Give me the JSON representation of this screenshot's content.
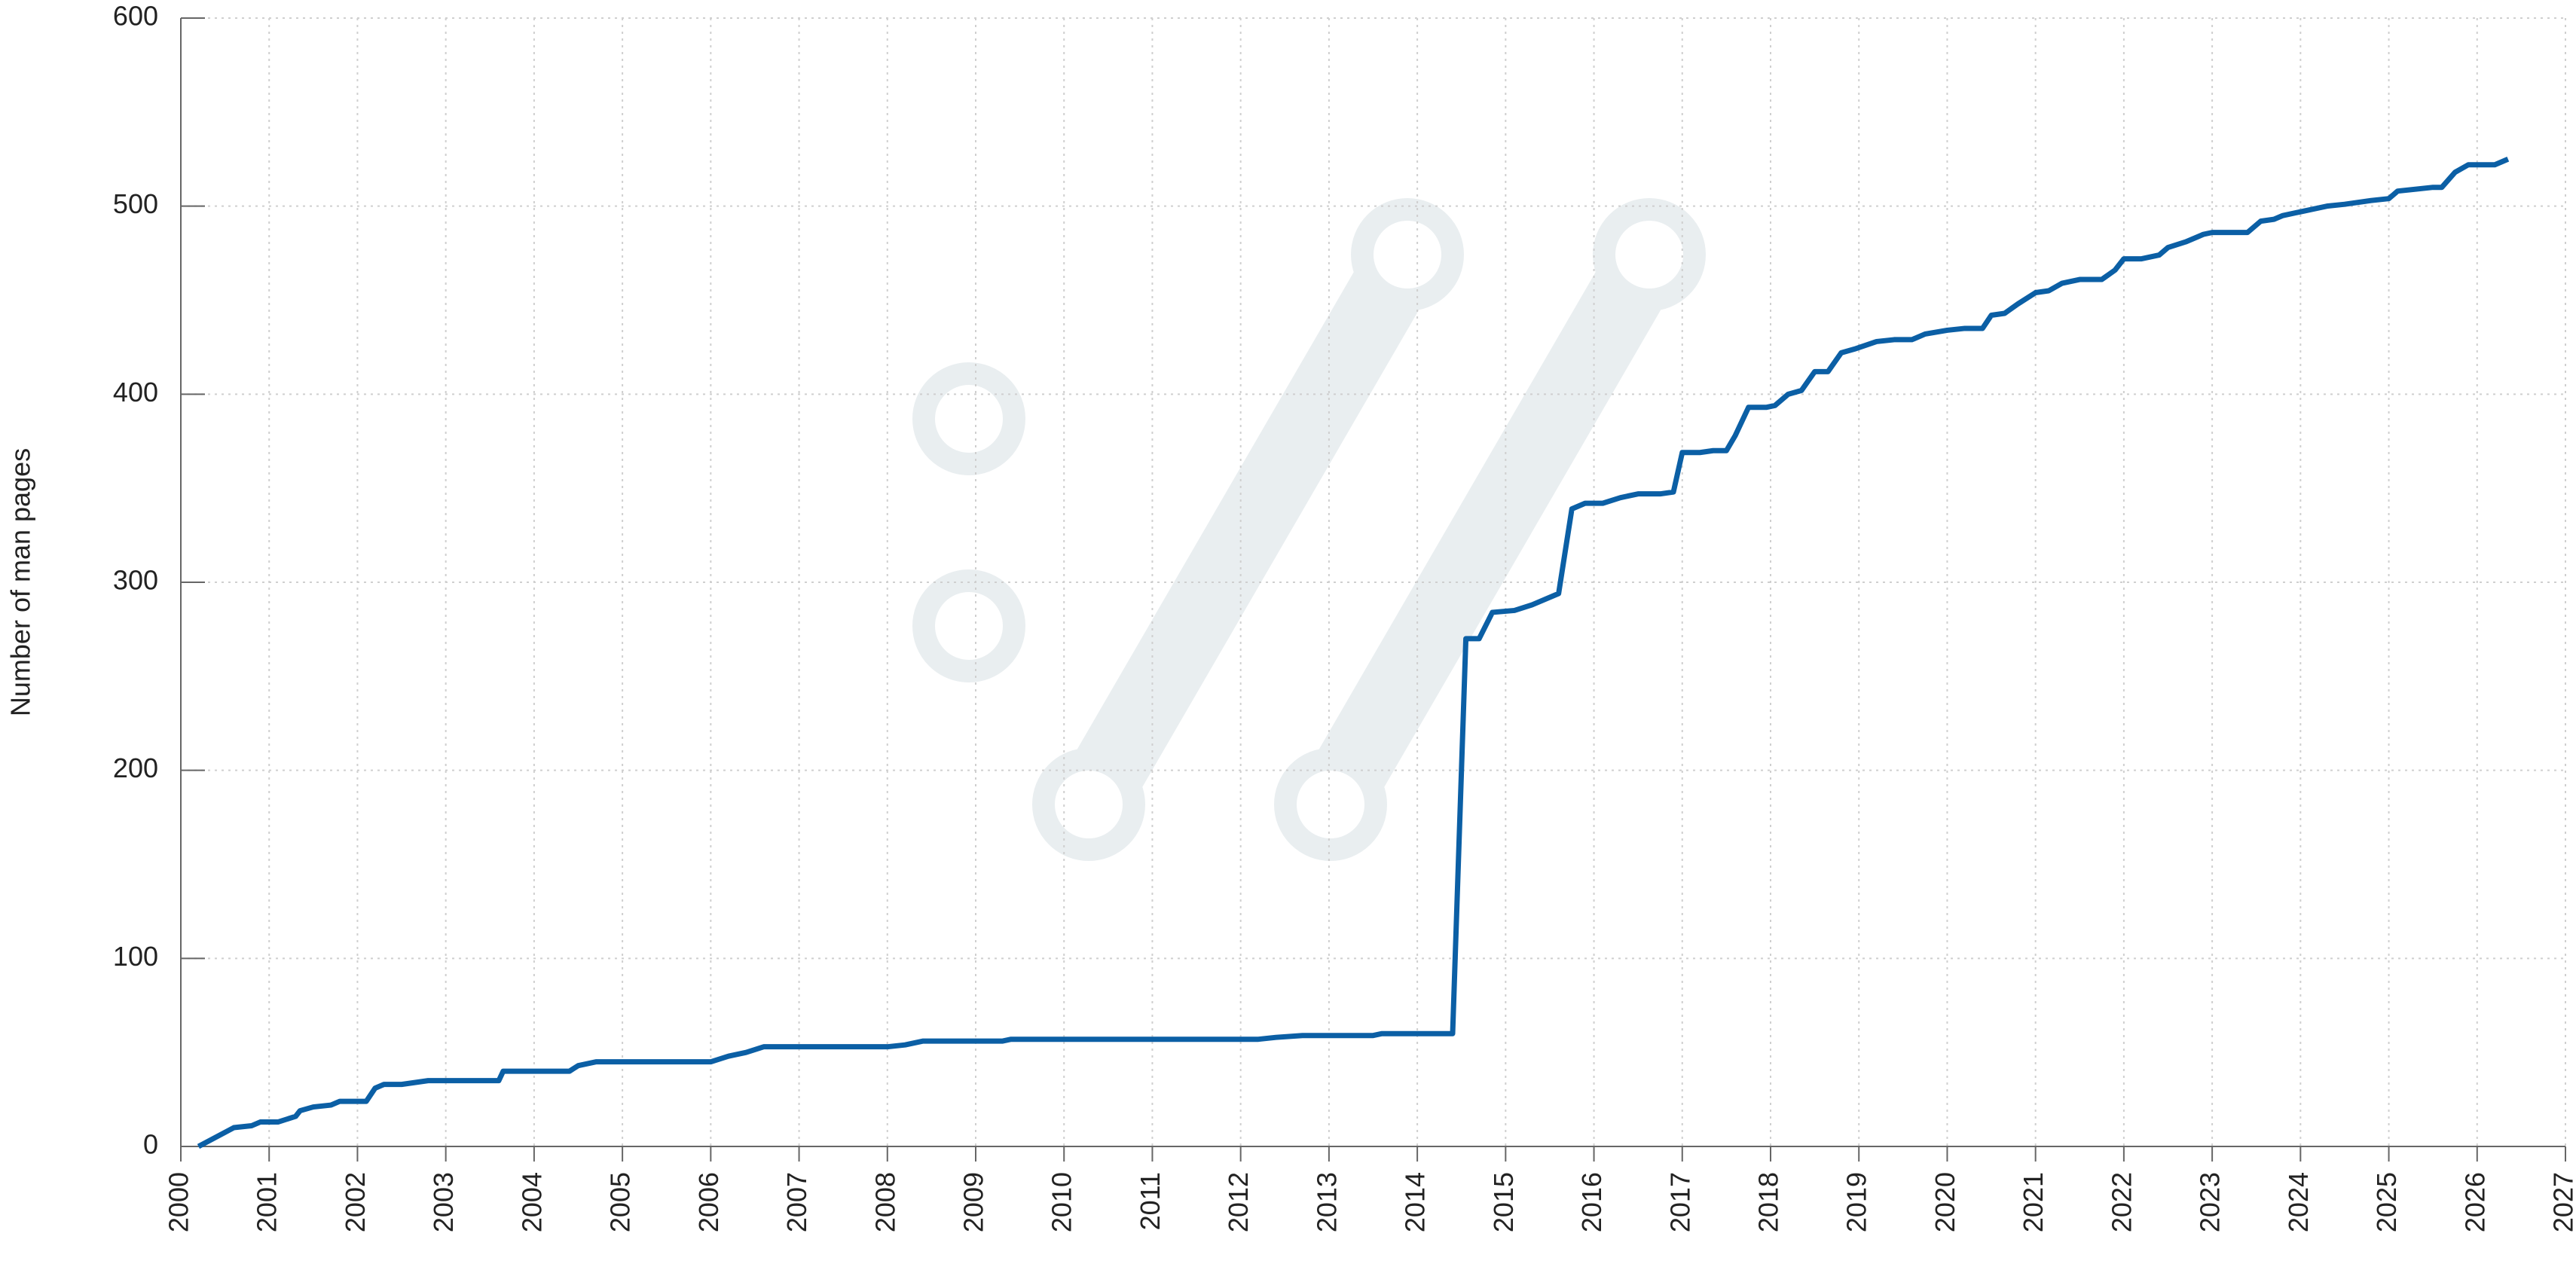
{
  "chart_data": {
    "type": "line",
    "y_label": "Number of man pages",
    "xlim": [
      2000,
      2027
    ],
    "xticks": [
      2000,
      2001,
      2002,
      2003,
      2004,
      2005,
      2006,
      2007,
      2008,
      2009,
      2010,
      2011,
      2012,
      2013,
      2014,
      2015,
      2016,
      2017,
      2018,
      2019,
      2020,
      2021,
      2022,
      2023,
      2024,
      2025,
      2026,
      2027
    ],
    "ylim": [
      0,
      600
    ],
    "yticks": [
      0,
      100,
      200,
      300,
      400,
      500,
      600
    ],
    "grid": true,
    "x": [
      2000.2,
      2000.6,
      2000.8,
      2000.9,
      2001.1,
      2001.3,
      2001.35,
      2001.5,
      2001.7,
      2001.8,
      2002.1,
      2002.2,
      2002.3,
      2002.5,
      2002.8,
      2003.6,
      2003.65,
      2004.4,
      2004.5,
      2004.7,
      2006.0,
      2006.2,
      2006.4,
      2006.6,
      2008.0,
      2008.2,
      2008.4,
      2009.3,
      2009.4,
      2012.2,
      2012.4,
      2012.7,
      2013.5,
      2013.6,
      2014.4,
      2014.55,
      2014.7,
      2014.85,
      2015.1,
      2015.3,
      2015.6,
      2015.75,
      2015.9,
      2016.1,
      2016.3,
      2016.5,
      2016.75,
      2016.9,
      2017.0,
      2017.2,
      2017.35,
      2017.5,
      2017.6,
      2017.75,
      2017.95,
      2018.05,
      2018.2,
      2018.35,
      2018.5,
      2018.65,
      2018.8,
      2018.95,
      2019.2,
      2019.4,
      2019.6,
      2019.75,
      2020.0,
      2020.2,
      2020.4,
      2020.5,
      2020.65,
      2020.8,
      2021.0,
      2021.15,
      2021.3,
      2021.5,
      2021.75,
      2021.9,
      2022.0,
      2022.2,
      2022.4,
      2022.5,
      2022.7,
      2022.9,
      2023.0,
      2023.4,
      2023.55,
      2023.7,
      2023.8,
      2024.0,
      2024.3,
      2024.5,
      2024.8,
      2025.0,
      2025.1,
      2025.5,
      2025.6,
      2025.75,
      2025.9,
      2026.2,
      2026.35
    ],
    "series": [
      {
        "color": "#0b5fa5",
        "values": [
          0,
          10,
          11,
          13,
          13,
          16,
          19,
          21,
          22,
          24,
          24,
          31,
          33,
          33,
          35,
          35,
          40,
          40,
          43,
          45,
          45,
          48,
          50,
          53,
          53,
          54,
          56,
          56,
          57,
          57,
          58,
          59,
          59,
          60,
          60,
          270,
          270,
          284,
          285,
          288,
          294,
          339,
          342,
          342,
          345,
          347,
          347,
          348,
          369,
          369,
          370,
          370,
          378,
          393,
          393,
          394,
          400,
          402,
          412,
          412,
          422,
          424,
          428,
          429,
          429,
          432,
          434,
          435,
          435,
          442,
          443,
          448,
          454,
          455,
          459,
          461,
          461,
          466,
          472,
          472,
          474,
          478,
          481,
          485,
          486,
          486,
          492,
          493,
          495,
          497,
          500,
          501,
          503,
          504,
          508,
          510,
          510,
          518,
          522,
          522,
          525
        ]
      }
    ]
  }
}
